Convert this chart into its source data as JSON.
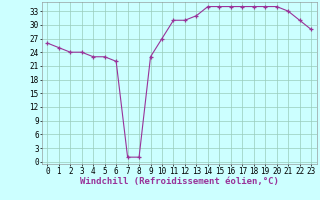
{
  "x": [
    0,
    1,
    2,
    3,
    4,
    5,
    6,
    7,
    8,
    9,
    10,
    11,
    12,
    13,
    14,
    15,
    16,
    17,
    18,
    19,
    20,
    21,
    22,
    23
  ],
  "y": [
    26,
    25,
    24,
    24,
    23,
    23,
    22,
    1,
    1,
    23,
    27,
    31,
    31,
    32,
    34,
    34,
    34,
    34,
    34,
    34,
    34,
    33,
    31,
    29
  ],
  "line_color": "#993399",
  "marker": "+",
  "bg_color": "#ccffff",
  "grid_color": "#99ccbb",
  "xlabel": "Windchill (Refroidissement éolien,°C)",
  "yticks": [
    0,
    3,
    6,
    9,
    12,
    15,
    18,
    21,
    24,
    27,
    30,
    33
  ],
  "xticks": [
    0,
    1,
    2,
    3,
    4,
    5,
    6,
    7,
    8,
    9,
    10,
    11,
    12,
    13,
    14,
    15,
    16,
    17,
    18,
    19,
    20,
    21,
    22,
    23
  ],
  "ylim": [
    -0.5,
    35
  ],
  "xlim": [
    -0.5,
    23.5
  ],
  "xlabel_fontsize": 6.5,
  "tick_fontsize": 5.5,
  "line_color_label": "#993399"
}
